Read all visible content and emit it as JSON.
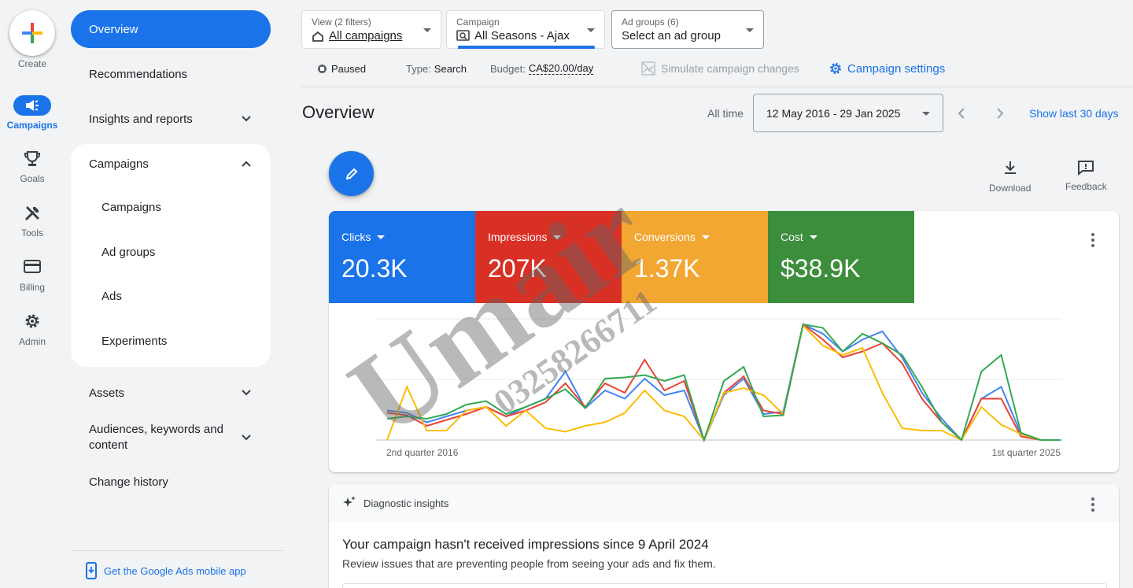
{
  "rail": {
    "create": "Create",
    "items": [
      {
        "label": "Campaigns",
        "icon": "megaphone-icon"
      },
      {
        "label": "Goals",
        "icon": "trophy-icon"
      },
      {
        "label": "Tools",
        "icon": "tools-icon"
      },
      {
        "label": "Billing",
        "icon": "credit-card-icon"
      },
      {
        "label": "Admin",
        "icon": "gear-icon"
      }
    ]
  },
  "nav": {
    "overview": "Overview",
    "recommendations": "Recommendations",
    "insights": "Insights and reports",
    "campaigns_section": "Campaigns",
    "sub": [
      "Campaigns",
      "Ad groups",
      "Ads",
      "Experiments"
    ],
    "assets": "Assets",
    "audiences_line1": "Audiences, keywords and",
    "audiences_line2": "content",
    "change_history": "Change history",
    "mobile_app": "Get the Google Ads mobile app"
  },
  "filters": {
    "view_caption": "View (2 filters)",
    "view_value": "All campaigns",
    "campaign_caption": "Campaign",
    "campaign_value": "All Seasons - Ajax",
    "adgroups_caption": "Ad groups (6)",
    "adgroups_value": "Select an ad group"
  },
  "status": {
    "state": "Paused",
    "type_label": "Type:",
    "type_value": "Search",
    "budget_label": "Budget:",
    "budget_value": "CA$20.00/day",
    "simulate": "Simulate campaign changes",
    "settings": "Campaign settings"
  },
  "header": {
    "title": "Overview",
    "range_label": "All time",
    "range_value": "12 May 2016 - 29 Jan 2025",
    "show_last": "Show last 30 days"
  },
  "tools": {
    "download": "Download",
    "feedback": "Feedback"
  },
  "metrics": [
    {
      "label": "Clicks",
      "value": "20.3K",
      "color": "#1a73e8"
    },
    {
      "label": "Impressions",
      "value": "207K",
      "color": "#d93025"
    },
    {
      "label": "Conversions",
      "value": "1.37K",
      "color": "#f2a732"
    },
    {
      "label": "Cost",
      "value": "$38.9K",
      "color": "#3c8e3c"
    }
  ],
  "chart_data": {
    "type": "line",
    "x_start_label": "2nd quarter 2016",
    "x_end_label": "1st quarter 2025",
    "x_count": 35,
    "series": [
      {
        "name": "Clicks",
        "color": "#4285f4",
        "values": [
          0.25,
          0.23,
          0.15,
          0.2,
          0.25,
          0.28,
          0.2,
          0.28,
          0.35,
          0.58,
          0.27,
          0.42,
          0.35,
          0.52,
          0.38,
          0.42,
          0,
          0.38,
          0.52,
          0.22,
          0.24,
          0.98,
          0.9,
          0.75,
          0.85,
          0.92,
          0.7,
          0.4,
          0.18,
          0,
          0.35,
          0.45,
          0.05,
          0,
          0
        ]
      },
      {
        "name": "Impressions",
        "color": "#ea4335",
        "values": [
          0.23,
          0.21,
          0.12,
          0.17,
          0.22,
          0.28,
          0.2,
          0.25,
          0.32,
          0.48,
          0.28,
          0.48,
          0.4,
          0.68,
          0.42,
          0.5,
          0,
          0.4,
          0.54,
          0.25,
          0.22,
          0.98,
          0.85,
          0.7,
          0.75,
          0.82,
          0.65,
          0.35,
          0.15,
          0,
          0.35,
          0.35,
          0.03,
          0,
          0
        ]
      },
      {
        "name": "Conversions",
        "color": "#fbbc04",
        "values": [
          0,
          0.45,
          0.08,
          0.08,
          0.25,
          0.28,
          0.12,
          0.25,
          0.1,
          0.07,
          0.12,
          0.15,
          0.23,
          0.42,
          0.25,
          0.2,
          0,
          0.4,
          0.44,
          0.38,
          0.22,
          0.97,
          0.8,
          0.72,
          0.78,
          0.4,
          0.1,
          0.08,
          0.08,
          0,
          0.28,
          0.13,
          0.05,
          0,
          0
        ]
      },
      {
        "name": "Cost",
        "color": "#34a853",
        "values": [
          0.18,
          0.2,
          0.18,
          0.22,
          0.3,
          0.33,
          0.22,
          0.28,
          0.35,
          0.43,
          0.27,
          0.52,
          0.53,
          0.55,
          0.5,
          0.55,
          0,
          0.5,
          0.62,
          0.2,
          0.21,
          0.98,
          0.95,
          0.75,
          0.9,
          0.82,
          0.72,
          0.45,
          0.15,
          0,
          0.58,
          0.72,
          0.06,
          0,
          0
        ]
      }
    ]
  },
  "diagnostic": {
    "label": "Diagnostic insights",
    "headline": "Your campaign hasn't received impressions since 9 April 2024",
    "sub": "Review issues that are preventing people from seeing your ads and fix them."
  }
}
